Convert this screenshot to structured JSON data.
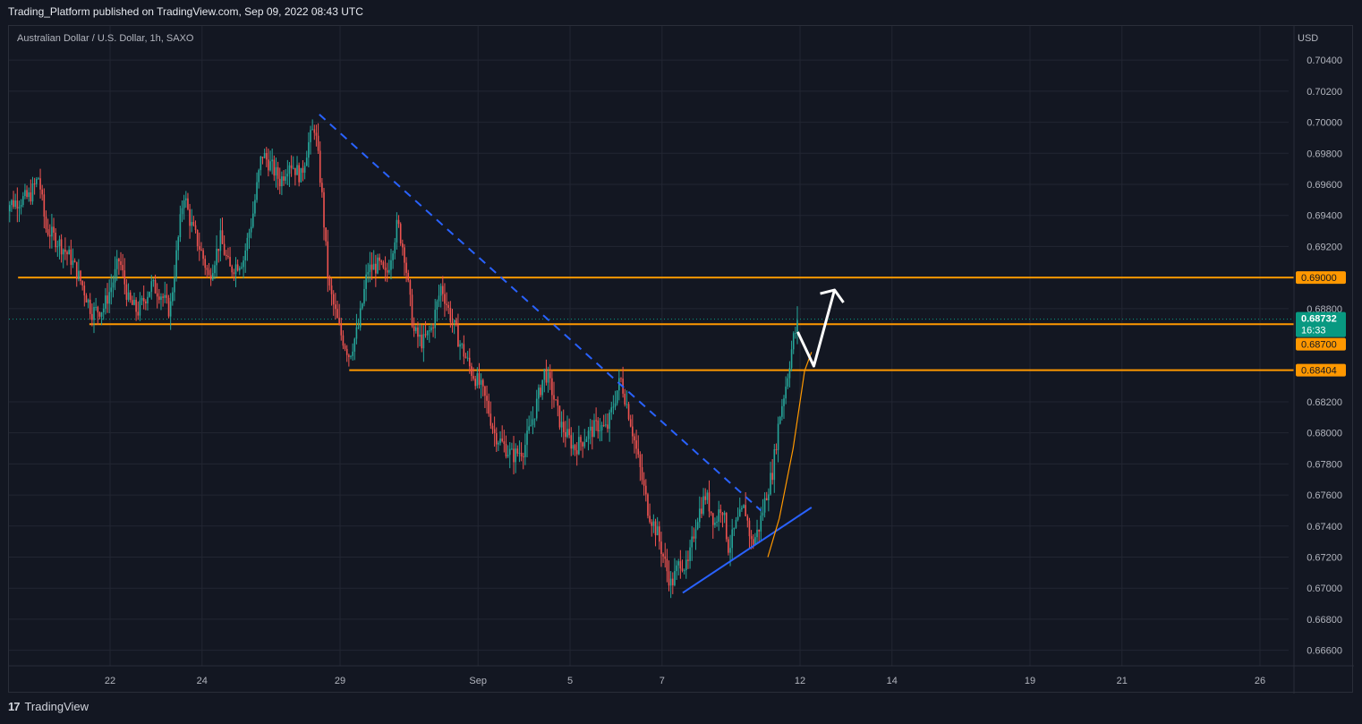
{
  "header": {
    "published": "Trading_Platform published on TradingView.com, Sep 09, 2022 08:43 UTC"
  },
  "footer": {
    "brand": "TradingView",
    "logo_glyph": "17"
  },
  "chart_data": {
    "type": "candlestick",
    "title": "Australian Dollar / U.S. Dollar, 1h, SAXO",
    "currency": "USD",
    "ylim": [
      0.665,
      0.7062
    ],
    "y_ticks": [
      0.704,
      0.702,
      0.7,
      0.698,
      0.696,
      0.694,
      0.692,
      0.688,
      0.682,
      0.68,
      0.678,
      0.676,
      0.674,
      0.672,
      0.67,
      0.668,
      0.666
    ],
    "x_ticks": [
      {
        "label": "22",
        "t": 2.0
      },
      {
        "label": "24",
        "t": 4.0
      },
      {
        "label": "29",
        "t": 7.0
      },
      {
        "label": "Sep",
        "t": 10.0
      },
      {
        "label": "5",
        "t": 12.0
      },
      {
        "label": "7",
        "t": 14.0
      },
      {
        "label": "12",
        "t": 17.0
      },
      {
        "label": "14",
        "t": 19.0
      },
      {
        "label": "19",
        "t": 22.0
      },
      {
        "label": "21",
        "t": 24.0
      },
      {
        "label": "26",
        "t": 27.0
      }
    ],
    "grid": true,
    "price_path": [
      [
        -0.35,
        0.6946
      ],
      [
        0.25,
        0.6952
      ],
      [
        0.45,
        0.6965
      ],
      [
        0.6,
        0.6932
      ],
      [
        0.9,
        0.6922
      ],
      [
        1.15,
        0.6912
      ],
      [
        1.4,
        0.6895
      ],
      [
        1.6,
        0.6878
      ],
      [
        1.85,
        0.688
      ],
      [
        2.05,
        0.6896
      ],
      [
        2.2,
        0.6912
      ],
      [
        2.4,
        0.6885
      ],
      [
        2.6,
        0.6878
      ],
      [
        2.9,
        0.6895
      ],
      [
        3.1,
        0.689
      ],
      [
        3.3,
        0.6878
      ],
      [
        3.6,
        0.6955
      ],
      [
        3.75,
        0.6935
      ],
      [
        4.0,
        0.6915
      ],
      [
        4.15,
        0.69
      ],
      [
        4.4,
        0.6925
      ],
      [
        4.6,
        0.6905
      ],
      [
        4.9,
        0.6912
      ],
      [
        5.1,
        0.694
      ],
      [
        5.3,
        0.698
      ],
      [
        5.5,
        0.6972
      ],
      [
        5.7,
        0.6962
      ],
      [
        5.9,
        0.6975
      ],
      [
        6.15,
        0.6965
      ],
      [
        6.3,
        0.6985
      ],
      [
        6.45,
        0.6998
      ],
      [
        6.6,
        0.6955
      ],
      [
        6.75,
        0.6895
      ],
      [
        7.0,
        0.6865
      ],
      [
        7.2,
        0.685
      ],
      [
        7.4,
        0.6868
      ],
      [
        7.6,
        0.6905
      ],
      [
        7.85,
        0.6908
      ],
      [
        8.0,
        0.69
      ],
      [
        8.25,
        0.6935
      ],
      [
        8.4,
        0.6915
      ],
      [
        8.6,
        0.6865
      ],
      [
        8.8,
        0.6858
      ],
      [
        9.0,
        0.6868
      ],
      [
        9.2,
        0.6895
      ],
      [
        9.4,
        0.6875
      ],
      [
        9.6,
        0.6858
      ],
      [
        9.85,
        0.684
      ],
      [
        10.05,
        0.683
      ],
      [
        10.2,
        0.6818
      ],
      [
        10.35,
        0.68
      ],
      [
        10.55,
        0.6792
      ],
      [
        10.75,
        0.6785
      ],
      [
        11.0,
        0.679
      ],
      [
        11.2,
        0.681
      ],
      [
        11.45,
        0.684
      ],
      [
        11.6,
        0.6828
      ],
      [
        11.8,
        0.6805
      ],
      [
        12.1,
        0.679
      ],
      [
        12.35,
        0.6798
      ],
      [
        12.6,
        0.6805
      ],
      [
        12.8,
        0.6802
      ],
      [
        13.0,
        0.6825
      ],
      [
        13.1,
        0.6835
      ],
      [
        13.3,
        0.681
      ],
      [
        13.5,
        0.678
      ],
      [
        13.7,
        0.675
      ],
      [
        13.9,
        0.6735
      ],
      [
        14.1,
        0.6712
      ],
      [
        14.2,
        0.6702
      ],
      [
        14.4,
        0.6718
      ],
      [
        14.55,
        0.6712
      ],
      [
        14.75,
        0.6745
      ],
      [
        14.95,
        0.676
      ],
      [
        15.15,
        0.6742
      ],
      [
        15.3,
        0.6755
      ],
      [
        15.45,
        0.6725
      ],
      [
        15.6,
        0.674
      ],
      [
        15.8,
        0.6752
      ],
      [
        15.95,
        0.6728
      ],
      [
        16.1,
        0.6738
      ],
      [
        16.25,
        0.6758
      ],
      [
        16.4,
        0.6775
      ],
      [
        16.55,
        0.681
      ],
      [
        16.7,
        0.6832
      ],
      [
        16.85,
        0.686
      ],
      [
        16.98,
        0.6873
      ]
    ],
    "last_price": 0.68732,
    "countdown": "16:33",
    "levels": [
      {
        "price": 0.69,
        "label": "0.69000",
        "t_start": 0.0
      },
      {
        "price": 0.687,
        "label": "0.68700",
        "t_start": 1.55
      },
      {
        "price": 0.68404,
        "label": "0.68404",
        "t_start": 7.2
      }
    ],
    "last_price_label": "0.68732",
    "colors": {
      "up": "#26a69a",
      "down": "#ef5350",
      "level": "#ff9800",
      "trend": "#2962ff",
      "projection": "#ffffff",
      "last": "#089981",
      "grid": "#222632",
      "text": "#b2b5be"
    },
    "drawings": {
      "dashed_trendline": [
        [
          6.55,
          0.7005
        ],
        [
          16.15,
          0.675
        ]
      ],
      "support_trendline": [
        [
          14.45,
          0.6697
        ],
        [
          17.25,
          0.6752
        ]
      ],
      "orange_curve": [
        [
          16.3,
          0.672
        ],
        [
          16.55,
          0.6745
        ],
        [
          16.85,
          0.679
        ],
        [
          17.1,
          0.684
        ],
        [
          17.25,
          0.6852
        ]
      ],
      "projection_arrow": [
        [
          16.95,
          0.6865
        ],
        [
          17.3,
          0.6843
        ],
        [
          17.75,
          0.6892
        ]
      ]
    }
  }
}
